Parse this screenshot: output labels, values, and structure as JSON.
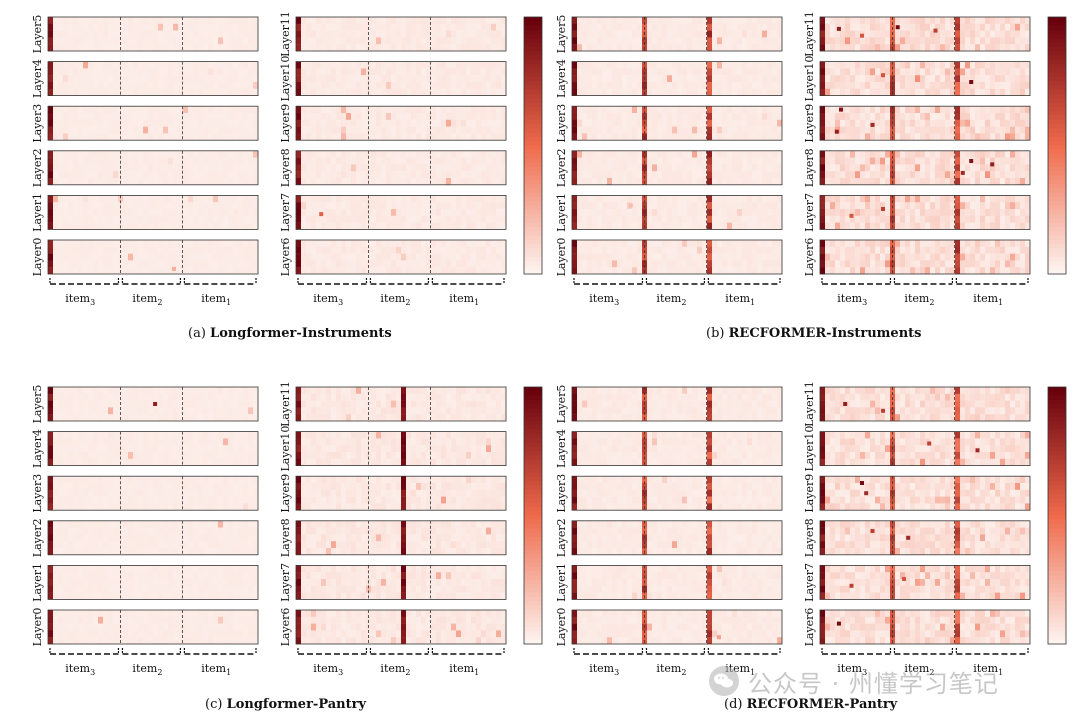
{
  "colormap": {
    "low": "#fdf3ef",
    "mid": "#ef6a4c",
    "high": "#67000d"
  },
  "watermark": {
    "text": "公众号 · 州懂学习笔记",
    "icon": "wechat-logo-icon"
  },
  "chart_data": [
    {
      "type": "heatmap",
      "caption_label": "(a)",
      "caption_title": "Longformer-Instruments",
      "item_labels": [
        "item",
        "item",
        "item"
      ],
      "item_subscripts": [
        "3",
        "2",
        "1"
      ],
      "columns": [
        {
          "layers": [
            "Layer5",
            "Layer4",
            "Layer3",
            "Layer2",
            "Layer1",
            "Layer0"
          ],
          "hotspots": [
            [],
            [],
            [],
            [],
            [],
            [
              [
                0.6,
                0.85,
                0.25
              ]
            ]
          ],
          "separator_strength": 0.0,
          "noise": 0.03
        },
        {
          "layers": [
            "Layer11",
            "Layer10",
            "Layer9",
            "Layer8",
            "Layer7",
            "Layer6"
          ],
          "hotspots": [
            [],
            [],
            [],
            [],
            [
              [
                0.12,
                0.55,
                0.55
              ]
            ],
            []
          ],
          "separator_strength": 0.0,
          "noise": 0.06
        }
      ]
    },
    {
      "type": "heatmap",
      "caption_label": "(b)",
      "caption_title": "RECFORMER-Instruments",
      "item_labels": [
        "item",
        "item",
        "item"
      ],
      "item_subscripts": [
        "3",
        "2",
        "1"
      ],
      "columns": [
        {
          "layers": [
            "Layer5",
            "Layer4",
            "Layer3",
            "Layer2",
            "Layer1",
            "Layer0"
          ],
          "hotspots": [
            [],
            [],
            [],
            [],
            [
              [
                0.28,
                0.3,
                0.2
              ]
            ],
            []
          ],
          "separator_strength": 0.85,
          "noise": 0.05
        },
        {
          "layers": [
            "Layer11",
            "Layer10",
            "Layer9",
            "Layer8",
            "Layer7",
            "Layer6"
          ],
          "hotspots": [
            [
              [
                0.37,
                0.3,
                0.95
              ],
              [
                0.09,
                0.35,
                0.85
              ],
              [
                0.2,
                0.55,
                0.6
              ],
              [
                0.55,
                0.4,
                0.7
              ]
            ],
            [
              [
                0.72,
                0.6,
                0.95
              ],
              [
                0.3,
                0.4,
                0.6
              ]
            ],
            [
              [
                0.1,
                0.1,
                0.9
              ],
              [
                0.25,
                0.55,
                0.8
              ],
              [
                0.08,
                0.75,
                0.85
              ]
            ],
            [
              [
                0.72,
                0.3,
                0.9
              ],
              [
                0.82,
                0.4,
                0.85
              ],
              [
                0.68,
                0.65,
                0.8
              ]
            ],
            [
              [
                0.3,
                0.4,
                0.7
              ],
              [
                0.15,
                0.6,
                0.6
              ]
            ],
            []
          ],
          "separator_strength": 0.8,
          "noise": 0.22
        }
      ]
    },
    {
      "type": "heatmap",
      "caption_label": "(c)",
      "caption_title": "Longformer-Pantry",
      "item_labels": [
        "item",
        "item",
        "item"
      ],
      "item_subscripts": [
        "3",
        "2",
        "1"
      ],
      "columns": [
        {
          "layers": [
            "Layer5",
            "Layer4",
            "Layer3",
            "Layer2",
            "Layer1",
            "Layer0"
          ],
          "hotspots": [
            [
              [
                0.51,
                0.5,
                0.85
              ]
            ],
            [],
            [],
            [],
            [],
            []
          ],
          "separator_strength": 0.0,
          "noise": 0.03
        },
        {
          "layers": [
            "Layer11",
            "Layer10",
            "Layer9",
            "Layer8",
            "Layer7",
            "Layer6"
          ],
          "hotspots": [
            [],
            [],
            [],
            [],
            [],
            []
          ],
          "center_stripe": 0.5,
          "separator_strength": 0.0,
          "noise": 0.08
        }
      ]
    },
    {
      "type": "heatmap",
      "caption_label": "(d)",
      "caption_title": "RECFORMER-Pantry",
      "item_labels": [
        "item",
        "item",
        "item"
      ],
      "item_subscripts": [
        "3",
        "2",
        "1"
      ],
      "columns": [
        {
          "layers": [
            "Layer5",
            "Layer4",
            "Layer3",
            "Layer2",
            "Layer1",
            "Layer0"
          ],
          "hotspots": [
            [],
            [],
            [],
            [],
            [],
            [
              [
                0.7,
                0.8,
                0.3
              ]
            ]
          ],
          "separator_strength": 0.8,
          "noise": 0.05
        },
        {
          "layers": [
            "Layer11",
            "Layer10",
            "Layer9",
            "Layer8",
            "Layer7",
            "Layer6"
          ],
          "hotspots": [
            [
              [
                0.12,
                0.5,
                0.85
              ],
              [
                0.3,
                0.7,
                0.7
              ]
            ],
            [
              [
                0.75,
                0.55,
                0.8
              ],
              [
                0.52,
                0.35,
                0.7
              ]
            ],
            [
              [
                0.2,
                0.2,
                0.95
              ],
              [
                0.22,
                0.5,
                0.8
              ]
            ],
            [
              [
                0.42,
                0.5,
                0.8
              ],
              [
                0.25,
                0.3,
                0.7
              ]
            ],
            [
              [
                0.15,
                0.6,
                0.7
              ],
              [
                0.4,
                0.4,
                0.6
              ]
            ],
            [
              [
                0.09,
                0.4,
                0.95
              ]
            ]
          ],
          "separator_strength": 0.75,
          "noise": 0.2
        }
      ]
    }
  ]
}
